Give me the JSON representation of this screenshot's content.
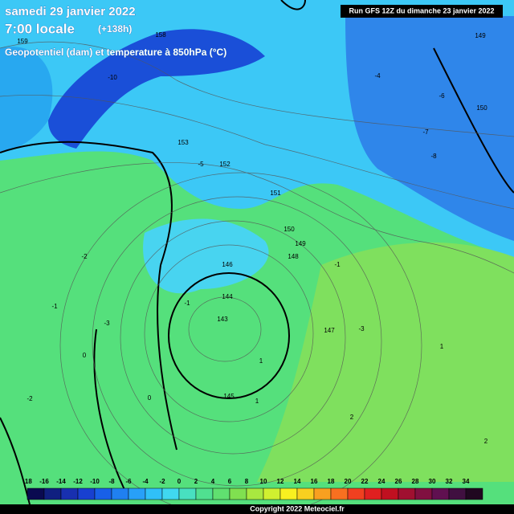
{
  "header": {
    "date": "samedi 29 janvier 2022",
    "time": "7:00 locale",
    "lead": "(+138h)",
    "subtitle": "Geopotentiel (dam) et temperature à 850hPa (°C)",
    "run": "Run GFS 12Z du dimanche 23 janvier 2022"
  },
  "geopotential_labels": [
    158,
    159,
    153,
    152,
    151,
    150,
    149,
    148,
    146,
    145,
    144,
    143,
    147,
    149,
    150,
    151
  ],
  "temperature_labels": [
    -10,
    -8,
    -6,
    -4,
    -3,
    -2,
    -1,
    0,
    1,
    2,
    -5,
    -7,
    -1,
    0,
    -2,
    -1,
    1,
    2,
    -3,
    1
  ],
  "colorbar": {
    "labels": [
      -18,
      -16,
      -14,
      -12,
      -10,
      -8,
      -6,
      -4,
      -2,
      0,
      2,
      4,
      6,
      8,
      10,
      12,
      14,
      16,
      18,
      20,
      22,
      24,
      26,
      28,
      30,
      32,
      34
    ]
  },
  "footer": {
    "copyright": "Copyright 2022 Meteociel.fr"
  }
}
